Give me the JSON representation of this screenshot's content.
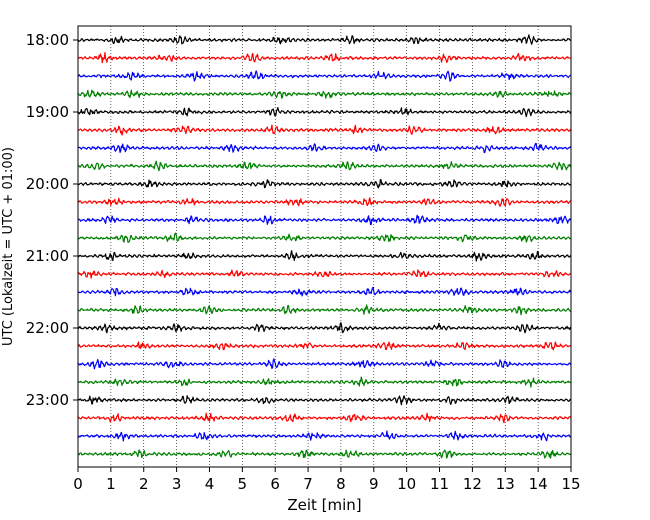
{
  "chart_data": {
    "type": "line",
    "title": "",
    "xlabel": "Zeit  [min]",
    "ylabel": "UTC (Lokalzeit = UTC + 01:00)",
    "xlim": [
      0,
      15
    ],
    "x_ticks": [
      0,
      1,
      2,
      3,
      4,
      5,
      6,
      7,
      8,
      9,
      10,
      11,
      12,
      13,
      14,
      15
    ],
    "y_tick_labels": [
      "18:00",
      "19:00",
      "20:00",
      "21:00",
      "22:00",
      "23:00"
    ],
    "trace_interval_min": 15,
    "start_time": "18:00",
    "trace_colors": [
      "#000000",
      "#ff0000",
      "#0000ff",
      "#008000"
    ],
    "grid_x": true,
    "grid_style": "dotted",
    "rows": [
      {
        "time": "18:00",
        "color": "#000000",
        "bursts": [
          1.2,
          3.1,
          6.2,
          8.3,
          10.3,
          13.7
        ]
      },
      {
        "time": "18:15",
        "color": "#ff0000",
        "bursts": [
          0.8,
          2.7,
          5.3,
          7.8,
          11.2,
          13.5
        ]
      },
      {
        "time": "18:30",
        "color": "#0000ff",
        "bursts": [
          1.6,
          3.6,
          5.4,
          9.2,
          11.3,
          13.1
        ]
      },
      {
        "time": "18:45",
        "color": "#008000",
        "bursts": [
          0.4,
          1.7,
          6.1,
          7.6,
          12.8,
          14.3
        ]
      },
      {
        "time": "19:00",
        "color": "#000000",
        "bursts": [
          0.3,
          3.3,
          6.0,
          9.9,
          13.7
        ]
      },
      {
        "time": "19:15",
        "color": "#ff0000",
        "bursts": [
          1.3,
          3.2,
          5.9,
          8.5,
          10.2,
          12.7
        ]
      },
      {
        "time": "19:30",
        "color": "#0000ff",
        "bursts": [
          1.3,
          4.7,
          7.2,
          9.1,
          12.4,
          14.0
        ]
      },
      {
        "time": "19:45",
        "color": "#008000",
        "bursts": [
          0.6,
          2.4,
          5.2,
          8.2,
          11.3,
          14.7
        ]
      },
      {
        "time": "20:00",
        "color": "#000000",
        "bursts": [
          2.2,
          5.7,
          9.1,
          11.4,
          13.0
        ]
      },
      {
        "time": "20:15",
        "color": "#ff0000",
        "bursts": [
          1.1,
          3.4,
          6.6,
          8.8,
          10.7,
          12.9
        ]
      },
      {
        "time": "20:30",
        "color": "#0000ff",
        "bursts": [
          0.9,
          3.5,
          5.8,
          8.9,
          10.4,
          14.7
        ]
      },
      {
        "time": "20:45",
        "color": "#008000",
        "bursts": [
          1.5,
          2.9,
          6.5,
          9.4,
          11.8,
          13.6
        ]
      },
      {
        "time": "21:00",
        "color": "#000000",
        "bursts": [
          1.0,
          3.4,
          6.5,
          9.8,
          12.2,
          13.9
        ]
      },
      {
        "time": "21:15",
        "color": "#ff0000",
        "bursts": [
          0.4,
          2.6,
          4.8,
          7.5,
          10.4,
          14.4
        ]
      },
      {
        "time": "21:30",
        "color": "#0000ff",
        "bursts": [
          1.1,
          3.4,
          6.8,
          8.9,
          11.6,
          13.4
        ]
      },
      {
        "time": "21:45",
        "color": "#008000",
        "bursts": [
          1.8,
          4.0,
          6.4,
          8.8,
          11.9,
          13.5
        ]
      },
      {
        "time": "22:00",
        "color": "#000000",
        "bursts": [
          0.9,
          3.0,
          5.5,
          8.0,
          11.0,
          13.6
        ]
      },
      {
        "time": "22:15",
        "color": "#ff0000",
        "bursts": [
          1.9,
          4.4,
          6.9,
          9.4,
          11.7,
          14.4
        ]
      },
      {
        "time": "22:30",
        "color": "#0000ff",
        "bursts": [
          0.6,
          2.9,
          5.9,
          8.7,
          10.8,
          12.9
        ]
      },
      {
        "time": "22:45",
        "color": "#008000",
        "bursts": [
          1.3,
          3.2,
          5.8,
          8.6,
          11.4,
          13.8
        ]
      },
      {
        "time": "23:00",
        "color": "#000000",
        "bursts": [
          0.5,
          3.3,
          5.7,
          9.9,
          11.4,
          13.2
        ]
      },
      {
        "time": "23:15",
        "color": "#ff0000",
        "bursts": [
          1.1,
          4.0,
          6.5,
          8.4,
          10.6,
          13.0
        ]
      },
      {
        "time": "23:30",
        "color": "#0000ff",
        "bursts": [
          1.4,
          3.8,
          7.2,
          9.4,
          11.5,
          14.2
        ]
      },
      {
        "time": "23:45",
        "color": "#008000",
        "bursts": [
          1.9,
          4.5,
          6.9,
          8.3,
          11.2,
          14.3
        ]
      }
    ]
  }
}
